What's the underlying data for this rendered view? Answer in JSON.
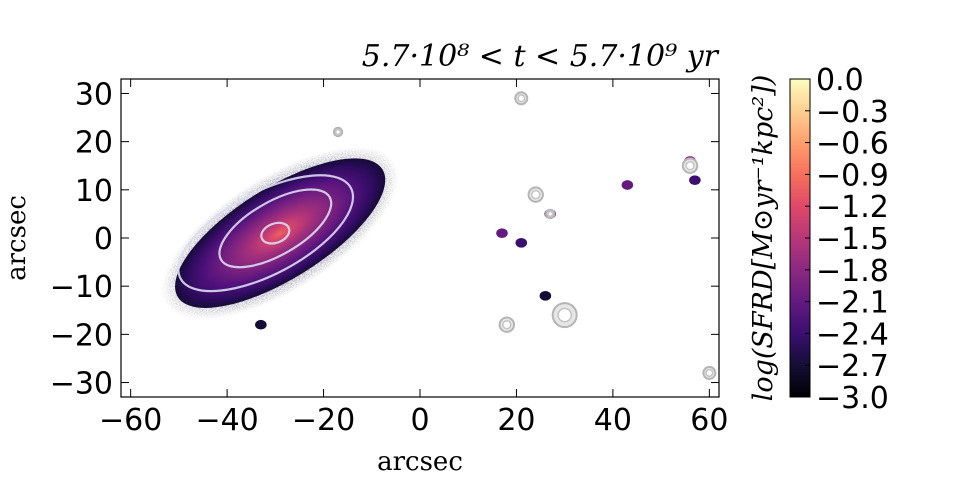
{
  "chart_data": {
    "type": "heatmap",
    "title": "5.7·10⁸ < t < 5.7·10⁹ yr",
    "xlabel": "arcsec",
    "ylabel": "arcsec",
    "xlim": [
      -62,
      62
    ],
    "ylim": [
      -33,
      33
    ],
    "x_ticks": [
      -60,
      -40,
      -20,
      0,
      20,
      40,
      60
    ],
    "x_tick_labels": [
      "−60",
      "−40",
      "−20",
      "0",
      "20",
      "40",
      "60"
    ],
    "y_ticks": [
      -30,
      -20,
      -10,
      0,
      10,
      20,
      30
    ],
    "y_tick_labels": [
      "−30",
      "−20",
      "−10",
      "0",
      "10",
      "20",
      "30"
    ],
    "colorbar": {
      "label": "log(SFRD[M⊙yr⁻¹kpc²])",
      "colormap": "magma",
      "vmin": -3.0,
      "vmax": 0.0,
      "ticks": [
        0.0,
        -0.3,
        -0.6,
        -0.9,
        -1.2,
        -1.5,
        -1.8,
        -2.1,
        -2.4,
        -2.7,
        -3.0
      ],
      "tick_labels": [
        "0.0",
        "−0.3",
        "−0.6",
        "−0.9",
        "−1.2",
        "−1.5",
        "−1.8",
        "−2.1",
        "−2.4",
        "−2.7",
        "−3.0"
      ]
    },
    "main_galaxy": {
      "center": [
        -29,
        1
      ],
      "semi_major": 25,
      "semi_minor": 9.5,
      "angle_deg": 32,
      "peak_log_sfrd": -0.8
    },
    "contours": [
      {
        "level": "outer",
        "center": [
          -32,
          1
        ],
        "rx": 20,
        "ry": 8.5,
        "angle_deg": 28
      },
      {
        "level": "middle",
        "center": [
          -30,
          2
        ],
        "rx": 13,
        "ry": 5.5,
        "angle_deg": 30
      },
      {
        "level": "inner",
        "center": [
          -30,
          1
        ],
        "rx": 3,
        "ry": 2,
        "angle_deg": 20
      }
    ],
    "sources": [
      {
        "x": 17,
        "y": 1,
        "log_sfrd": -2.2
      },
      {
        "x": 21,
        "y": -1,
        "log_sfrd": -2.5
      },
      {
        "x": 24,
        "y": 9,
        "log_sfrd": -2.3
      },
      {
        "x": 27,
        "y": 5,
        "log_sfrd": -2.0
      },
      {
        "x": 43,
        "y": 11,
        "log_sfrd": -2.1
      },
      {
        "x": 56,
        "y": 16,
        "log_sfrd": -1.9
      },
      {
        "x": 57,
        "y": 12,
        "log_sfrd": -2.4
      },
      {
        "x": 26,
        "y": -12,
        "log_sfrd": -2.8
      },
      {
        "x": -33,
        "y": -18,
        "log_sfrd": -2.7
      }
    ],
    "masked_stars": [
      {
        "x": 21,
        "y": 29,
        "size": 1.0
      },
      {
        "x": -17,
        "y": 22,
        "size": 0.7
      },
      {
        "x": 24,
        "y": 9,
        "size": 1.2
      },
      {
        "x": 27,
        "y": 5,
        "size": 0.7
      },
      {
        "x": 56,
        "y": 15,
        "size": 1.2
      },
      {
        "x": 18,
        "y": -18,
        "size": 1.2
      },
      {
        "x": 30,
        "y": -16,
        "size": 2.0
      },
      {
        "x": 60,
        "y": -28,
        "size": 1.0
      }
    ]
  }
}
